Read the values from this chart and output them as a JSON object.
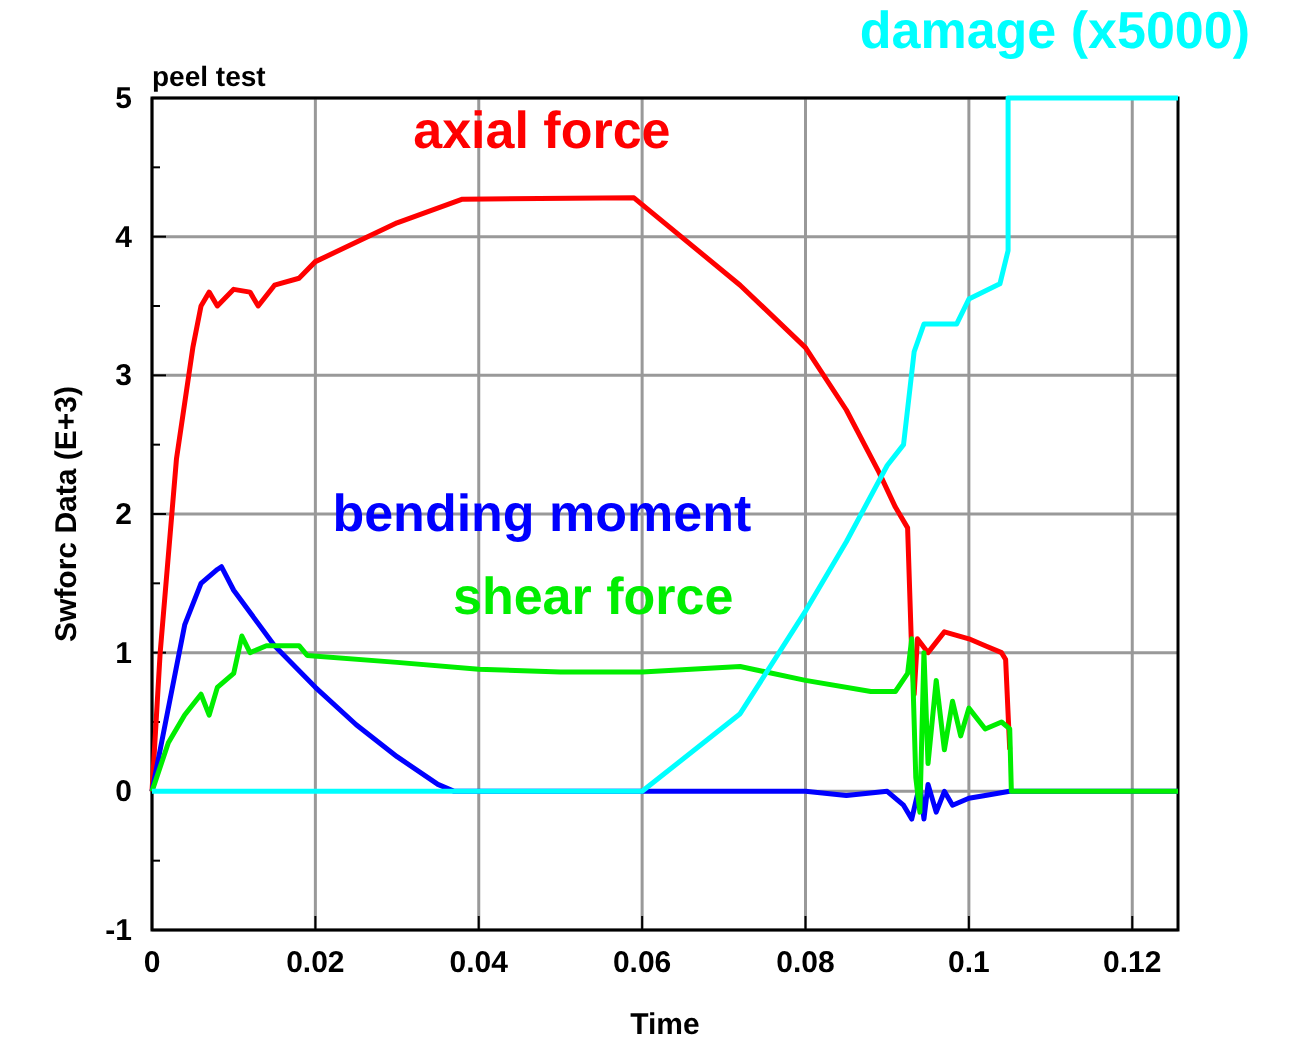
{
  "chart_data": {
    "type": "line",
    "title": "peel test",
    "xlabel": "Time",
    "ylabel": "Swforc Data (E+3)",
    "xlim": [
      0,
      0.1256
    ],
    "ylim": [
      -1,
      5
    ],
    "xticks": [
      0,
      0.02,
      0.04,
      0.06,
      0.08,
      0.1,
      0.12
    ],
    "yticks": [
      -1,
      {
        "value": -0.5,
        "label": null
      },
      0,
      {
        "value": 0.5,
        "label": null
      },
      1,
      {
        "value": 1.5,
        "label": null
      },
      2,
      {
        "value": 2.5,
        "label": null
      },
      3,
      {
        "value": 3.5,
        "label": null
      },
      4,
      {
        "value": 4.5,
        "label": null
      },
      5
    ],
    "grid": true,
    "legend": false,
    "marker": "none",
    "line_style": "solid",
    "series": [
      {
        "name": "axial force",
        "color": "#ff0000",
        "x": [
          0,
          0.001,
          0.003,
          0.005,
          0.006,
          0.007,
          0.008,
          0.01,
          0.012,
          0.013,
          0.015,
          0.018,
          0.02,
          0.03,
          0.038,
          0.059,
          0.072,
          0.08,
          0.085,
          0.089,
          0.091,
          0.0925,
          0.093,
          0.0933,
          0.0937,
          0.095,
          0.097,
          0.1,
          0.102,
          0.104,
          0.1045,
          0.105
        ],
        "values": [
          0,
          1.0,
          2.4,
          3.2,
          3.5,
          3.6,
          3.5,
          3.62,
          3.6,
          3.5,
          3.65,
          3.7,
          3.82,
          4.1,
          4.27,
          4.28,
          3.65,
          3.2,
          2.75,
          2.3,
          2.05,
          1.9,
          1.0,
          0.7,
          1.1,
          1.0,
          1.15,
          1.1,
          1.05,
          1.0,
          0.95,
          0.3
        ]
      },
      {
        "name": "bending moment",
        "color": "#0000ff",
        "x": [
          0,
          0.002,
          0.004,
          0.006,
          0.008,
          0.0085,
          0.01,
          0.015,
          0.02,
          0.025,
          0.03,
          0.035,
          0.037,
          0.06,
          0.08,
          0.085,
          0.09,
          0.092,
          0.093,
          0.094,
          0.0945,
          0.095,
          0.096,
          0.097,
          0.098,
          0.1,
          0.102,
          0.105,
          0.1256
        ],
        "values": [
          0,
          0.6,
          1.2,
          1.5,
          1.6,
          1.62,
          1.45,
          1.05,
          0.75,
          0.48,
          0.25,
          0.05,
          0,
          0,
          0,
          -0.03,
          0,
          -0.1,
          -0.2,
          0.05,
          -0.2,
          0.05,
          -0.15,
          0,
          -0.1,
          -0.05,
          -0.03,
          0,
          0
        ]
      },
      {
        "name": "shear force",
        "color": "#00ee00",
        "x": [
          0,
          0.002,
          0.004,
          0.006,
          0.007,
          0.008,
          0.01,
          0.011,
          0.012,
          0.014,
          0.018,
          0.019,
          0.03,
          0.04,
          0.05,
          0.06,
          0.072,
          0.08,
          0.088,
          0.091,
          0.0925,
          0.093,
          0.0935,
          0.094,
          0.0945,
          0.095,
          0.096,
          0.097,
          0.098,
          0.099,
          0.1,
          0.102,
          0.104,
          0.105,
          0.1052,
          0.1256
        ],
        "values": [
          0,
          0.35,
          0.55,
          0.7,
          0.55,
          0.75,
          0.85,
          1.12,
          1.0,
          1.05,
          1.05,
          0.98,
          0.93,
          0.88,
          0.86,
          0.86,
          0.9,
          0.8,
          0.72,
          0.72,
          0.85,
          1.1,
          0.1,
          -0.15,
          1.0,
          0.2,
          0.8,
          0.3,
          0.65,
          0.4,
          0.6,
          0.45,
          0.5,
          0.45,
          0,
          0
        ]
      },
      {
        "name": "damage (x5000)",
        "color": "#00ffff",
        "x": [
          0,
          0.06,
          0.072,
          0.08,
          0.085,
          0.09,
          0.092,
          0.0933,
          0.0945,
          0.0985,
          0.1,
          0.1038,
          0.1048,
          0.1048,
          0.1256
        ],
        "values": [
          0,
          0,
          0.56,
          1.3,
          1.8,
          2.35,
          2.5,
          3.17,
          3.37,
          3.37,
          3.55,
          3.66,
          3.9,
          5,
          5
        ]
      }
    ]
  }
}
